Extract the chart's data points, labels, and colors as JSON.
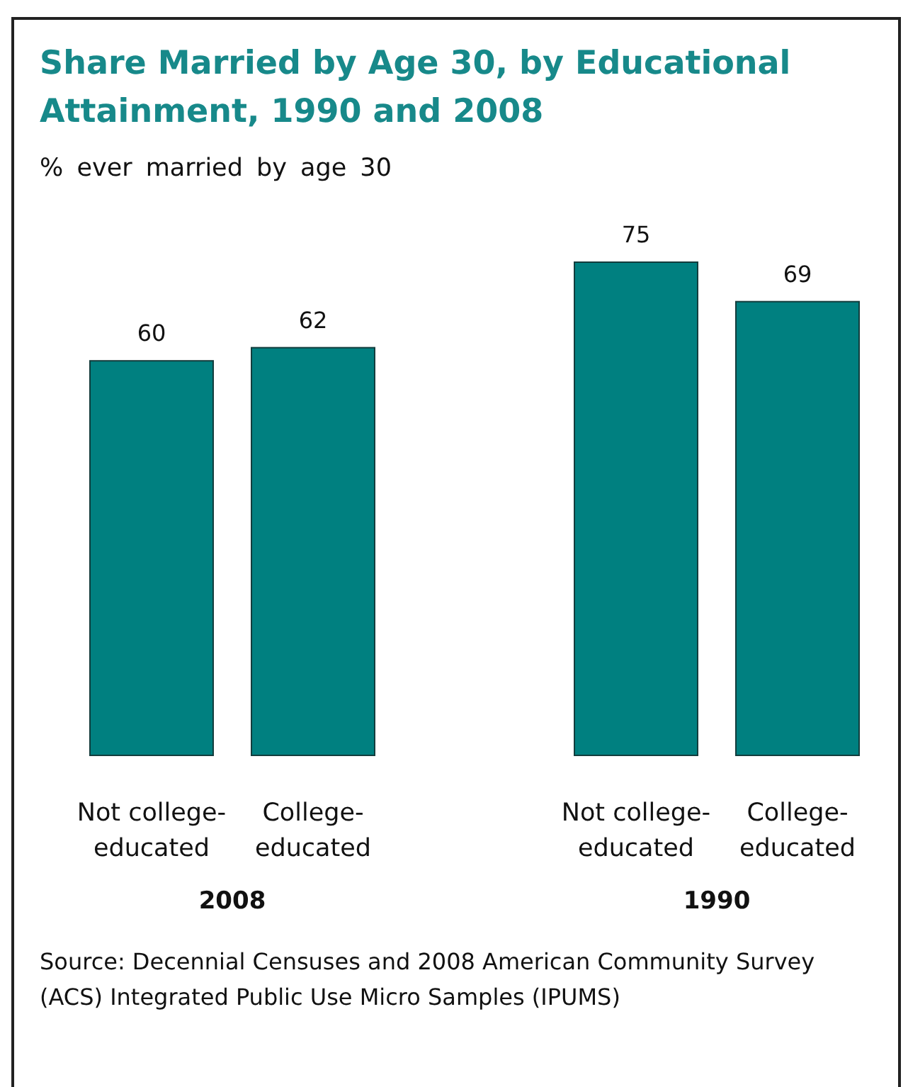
{
  "chart_data": {
    "type": "bar",
    "title": "Share Married by Age 30, by Educational Attainment, 1990 and 2008",
    "subtitle": "% ever married by age 30",
    "categories": [
      "Not college-educated",
      "College-educated",
      null,
      "Not college-educated",
      "College-educated"
    ],
    "values": [
      60,
      62,
      null,
      75,
      69
    ],
    "color": "#008080",
    "data_labels": true,
    "annotations": [
      "2008",
      "1990",
      "Source: Decennial Censuses and 2008 American Community Survey (ACS) Integrated Public Use Micro Samples (IPUMS)"
    ]
  }
}
